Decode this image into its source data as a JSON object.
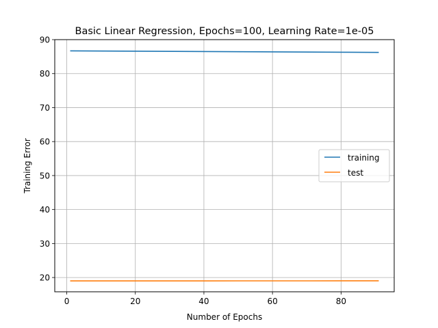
{
  "chart_data": {
    "type": "line",
    "title": "Basic Linear Regression, Epochs=100, Learning Rate=1e-05",
    "xlabel": "Number of Epochs",
    "ylabel": "Training Error",
    "xlim": [
      -3.5,
      95.5
    ],
    "ylim": [
      15.8,
      90
    ],
    "xticks": [
      0,
      20,
      40,
      60,
      80
    ],
    "yticks": [
      20,
      30,
      40,
      50,
      60,
      70,
      80,
      90
    ],
    "grid": true,
    "legend_position": "center-right",
    "x": [
      1,
      11,
      21,
      31,
      41,
      51,
      61,
      71,
      81,
      91
    ],
    "series": [
      {
        "name": "training",
        "color": "#1f77b4",
        "values": [
          86.7,
          86.65,
          86.6,
          86.55,
          86.5,
          86.45,
          86.4,
          86.35,
          86.3,
          86.25
        ]
      },
      {
        "name": "test",
        "color": "#ff7f0e",
        "values": [
          19.0,
          19.0,
          19.0,
          19.0,
          19.0,
          19.02,
          19.02,
          19.02,
          19.03,
          19.03
        ]
      }
    ]
  }
}
